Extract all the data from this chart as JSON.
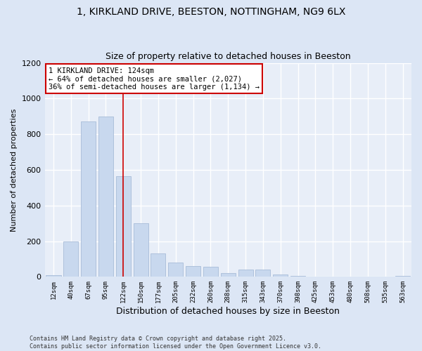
{
  "title_line1": "1, KIRKLAND DRIVE, BEESTON, NOTTINGHAM, NG9 6LX",
  "title_line2": "Size of property relative to detached houses in Beeston",
  "xlabel": "Distribution of detached houses by size in Beeston",
  "ylabel": "Number of detached properties",
  "categories": [
    "12sqm",
    "40sqm",
    "67sqm",
    "95sqm",
    "122sqm",
    "150sqm",
    "177sqm",
    "205sqm",
    "232sqm",
    "260sqm",
    "288sqm",
    "315sqm",
    "343sqm",
    "370sqm",
    "398sqm",
    "425sqm",
    "453sqm",
    "480sqm",
    "508sqm",
    "535sqm",
    "563sqm"
  ],
  "values": [
    10,
    200,
    870,
    900,
    565,
    300,
    130,
    80,
    60,
    55,
    20,
    40,
    40,
    15,
    5,
    2,
    2,
    1,
    0,
    0,
    5
  ],
  "bar_color": "#c8d8ee",
  "bar_edge_color": "#a8bcd8",
  "vline_x_idx": 4,
  "vline_color": "#cc0000",
  "annotation_text": "1 KIRKLAND DRIVE: 124sqm\n← 64% of detached houses are smaller (2,027)\n36% of semi-detached houses are larger (1,134) →",
  "annotation_box_color": "#ffffff",
  "annotation_box_edge": "#cc0000",
  "annotation_fontsize": 7.5,
  "ylim": [
    0,
    1200
  ],
  "yticks": [
    0,
    200,
    400,
    600,
    800,
    1000,
    1200
  ],
  "title_fontsize": 10,
  "subtitle_fontsize": 9,
  "xlabel_fontsize": 9,
  "ylabel_fontsize": 8,
  "footer_text": "Contains HM Land Registry data © Crown copyright and database right 2025.\nContains public sector information licensed under the Open Government Licence v3.0.",
  "background_color": "#dce6f5",
  "plot_bg_color": "#e8eef8",
  "grid_color": "#ffffff"
}
